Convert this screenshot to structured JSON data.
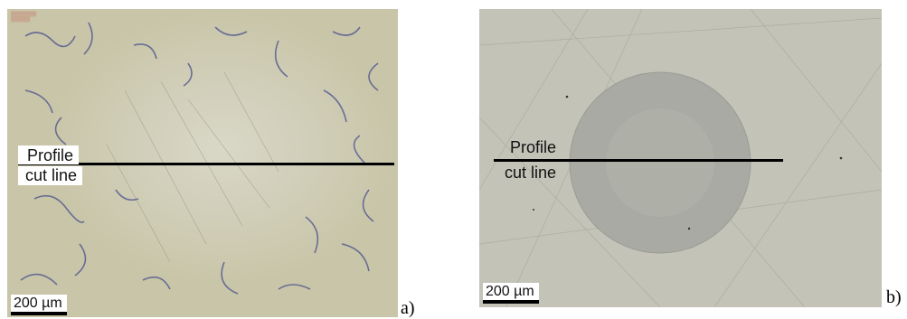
{
  "panels": [
    {
      "id": "a",
      "letter": "a)",
      "profile_label": "Profile",
      "cut_label": "cut line",
      "scale_label": "200 µm"
    },
    {
      "id": "b",
      "letter": "b)",
      "profile_label": "Profile",
      "cut_label": "cut line",
      "scale_label": "200 µm"
    }
  ],
  "colors": {
    "panel_a_base": "#cfcdb6",
    "panel_b_base": "#c2c0b5",
    "crater": "#a9aba3",
    "cut_line": "#000000"
  }
}
